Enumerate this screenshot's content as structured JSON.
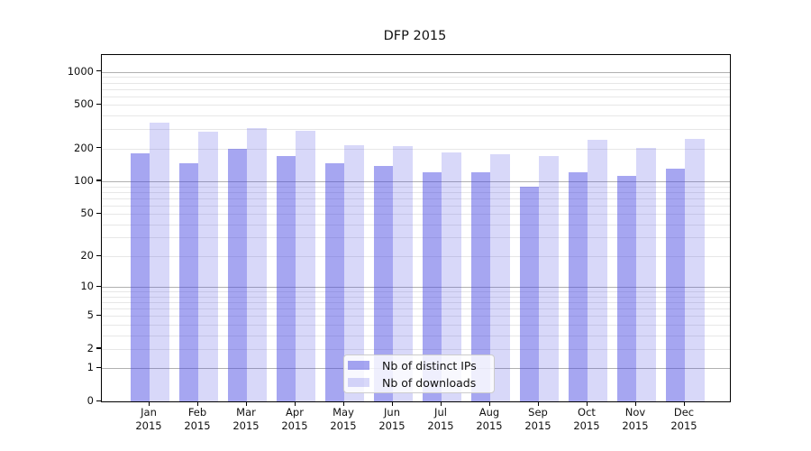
{
  "chart_data": {
    "type": "bar",
    "title": "DFP 2015",
    "categories": [
      "Jan",
      "Feb",
      "Mar",
      "Apr",
      "May",
      "Jun",
      "Jul",
      "Aug",
      "Sep",
      "Oct",
      "Nov",
      "Dec"
    ],
    "x_year_label": "2015",
    "series": [
      {
        "name": "Nb of distinct IPs",
        "values": [
          181,
          146,
          198,
          172,
          147,
          138,
          120,
          122,
          89,
          122,
          113,
          130
        ],
        "color": "rgba(70,70,225,0.48)"
      },
      {
        "name": "Nb of downloads",
        "values": [
          346,
          287,
          310,
          293,
          215,
          210,
          185,
          176,
          172,
          238,
          202,
          245
        ],
        "color": "rgba(70,70,225,0.21)"
      }
    ],
    "yscale": "log1p",
    "ytick_labels": [
      "0",
      "1",
      "2",
      "5",
      "10",
      "20",
      "50",
      "100",
      "200",
      "500",
      "1000"
    ],
    "yticks": [
      0,
      1,
      2,
      5,
      10,
      20,
      50,
      100,
      200,
      500,
      1000
    ],
    "ylim": [
      0,
      1400
    ],
    "grid": true,
    "legend_position": "lower-center",
    "colors": {
      "major_gridline": "#b0b0b0",
      "minor_gridline": "#e7e7e7",
      "spine": "#000000",
      "text": "#111111"
    }
  }
}
